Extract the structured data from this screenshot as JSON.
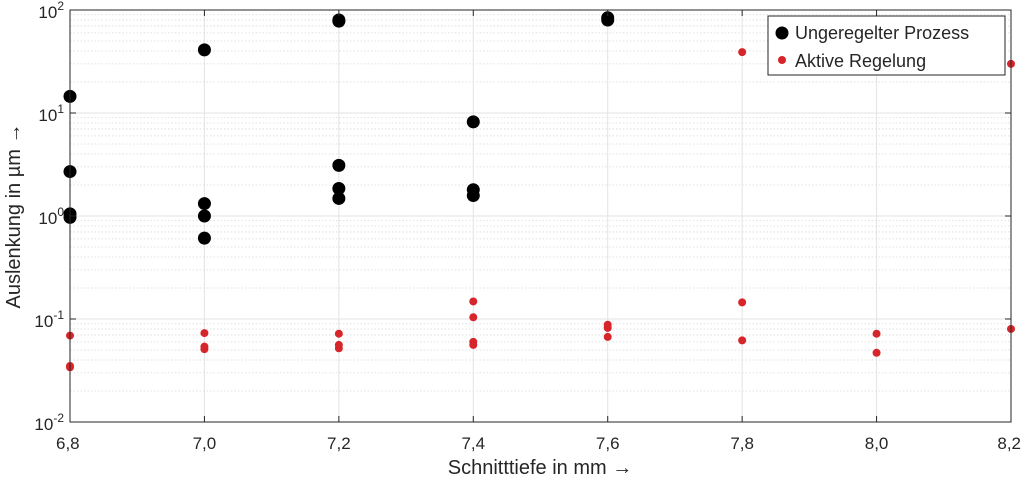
{
  "chart_data": {
    "type": "scatter",
    "xlabel": "Schnitttiefe in mm →",
    "ylabel": "Auslenkung in µm →",
    "yscale": "log",
    "xlim": [
      6.8,
      8.2
    ],
    "ylim": [
      0.01,
      100
    ],
    "x_ticks": [
      6.8,
      7.0,
      7.2,
      7.4,
      7.6,
      7.8,
      8.0,
      8.2
    ],
    "x_tick_labels": [
      "6,8",
      "7,0",
      "7,2",
      "7,4",
      "7,6",
      "7,8",
      "8,0",
      "8,2"
    ],
    "y_ticks": [
      {
        "base": "10",
        "exp": "-2",
        "value": 0.01
      },
      {
        "base": "10",
        "exp": "-1",
        "value": 0.1
      },
      {
        "base": "10",
        "exp": "0",
        "value": 1
      },
      {
        "base": "10",
        "exp": "1",
        "value": 10
      },
      {
        "base": "10",
        "exp": "2",
        "value": 100
      }
    ],
    "grid": true,
    "legend_position": "top-right",
    "series": [
      {
        "name": "Ungeregelter Prozess",
        "color": "#000000",
        "marker_size": "large",
        "points": [
          [
            6.8,
            14.5
          ],
          [
            6.8,
            2.7
          ],
          [
            6.8,
            1.05
          ],
          [
            6.8,
            0.97
          ],
          [
            7.0,
            41.0
          ],
          [
            7.0,
            1.32
          ],
          [
            7.0,
            1.0
          ],
          [
            7.0,
            0.61
          ],
          [
            7.2,
            78.0
          ],
          [
            7.2,
            80.0
          ],
          [
            7.2,
            3.1
          ],
          [
            7.2,
            1.85
          ],
          [
            7.2,
            1.48
          ],
          [
            7.4,
            8.2
          ],
          [
            7.4,
            1.8
          ],
          [
            7.4,
            1.58
          ],
          [
            7.6,
            80.0
          ],
          [
            7.6,
            84.0
          ]
        ]
      },
      {
        "name": "Aktive Regelung",
        "color": "#d7262b",
        "marker_size": "small",
        "points": [
          [
            6.8,
            0.069
          ],
          [
            6.8,
            0.035
          ],
          [
            6.8,
            0.034
          ],
          [
            7.0,
            0.073
          ],
          [
            7.0,
            0.054
          ],
          [
            7.0,
            0.051
          ],
          [
            7.2,
            0.072
          ],
          [
            7.2,
            0.056
          ],
          [
            7.2,
            0.052
          ],
          [
            7.4,
            0.148
          ],
          [
            7.4,
            0.104
          ],
          [
            7.4,
            0.06
          ],
          [
            7.4,
            0.056
          ],
          [
            7.6,
            0.088
          ],
          [
            7.6,
            0.082
          ],
          [
            7.6,
            0.067
          ],
          [
            7.8,
            39.0
          ],
          [
            7.8,
            0.145
          ],
          [
            7.8,
            0.062
          ],
          [
            8.0,
            0.072
          ],
          [
            8.0,
            0.047
          ],
          [
            8.2,
            30.0
          ],
          [
            8.2,
            0.08
          ]
        ]
      }
    ]
  }
}
